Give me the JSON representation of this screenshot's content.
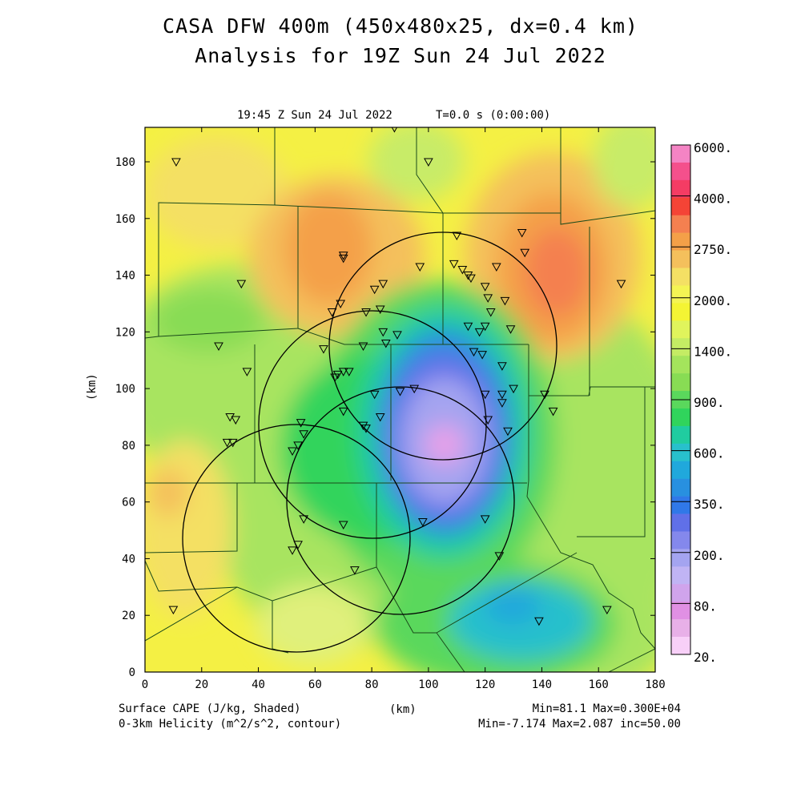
{
  "header": {
    "title_line1": "CASA DFW 400m (450x480x25, dx=0.4 km)",
    "title_line2": "Analysis for 19Z Sun 24 Jul 2022",
    "plot_time": "19:45 Z Sun 24 Jul 2022",
    "model_time": "T=0.0 s (0:00:00)"
  },
  "axes": {
    "x_label": "(km)",
    "y_label": "(km)",
    "x_ticks": [
      "0",
      "20",
      "40",
      "60",
      "80",
      "100",
      "120",
      "140",
      "160",
      "180"
    ],
    "y_ticks": [
      "0",
      "20",
      "40",
      "60",
      "80",
      "100",
      "120",
      "140",
      "160",
      "180"
    ],
    "x_range": [
      0,
      180
    ],
    "y_range": [
      0,
      192
    ]
  },
  "colorbar": {
    "labels": [
      "6000.",
      "4000.",
      "2750.",
      "2000.",
      "1400.",
      "900.",
      "600.",
      "350.",
      "200.",
      "80.",
      "20."
    ],
    "colors": [
      "#f484c4",
      "#f4508c",
      "#f43c64",
      "#f44436",
      "#f48050",
      "#f4a048",
      "#f4c05c",
      "#f4e064",
      "#f4f454",
      "#f4f434",
      "#e0f45c",
      "#c4ec64",
      "#a4e45c",
      "#88dc54",
      "#5ad85c",
      "#30d45c",
      "#20cca0",
      "#28c0cc",
      "#20a8dc",
      "#2890e0",
      "#3078e8",
      "#6070e8",
      "#8488ec",
      "#a4a4f0",
      "#c0b4f4",
      "#d0a4ec",
      "#e090e4",
      "#e8b0e8",
      "#f8d0f8"
    ]
  },
  "footer": {
    "left_line1": "Surface CAPE (J/kg, Shaded)",
    "left_line2": "0-3km Helicity (m^2/s^2, contour)",
    "center": "(km)",
    "right_line1": "Min=81.1 Max=0.300E+04",
    "right_line2": "Min=-7.174 Max=2.087 inc=50.00"
  },
  "map_layers": [
    "cape-shading",
    "county-boundaries",
    "radar-range-rings",
    "station-markers"
  ]
}
